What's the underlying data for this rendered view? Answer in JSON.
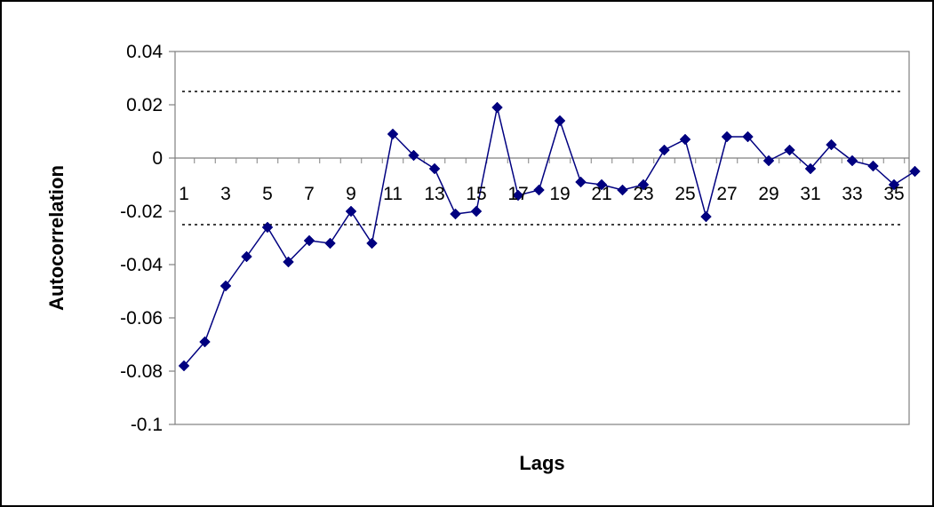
{
  "chart_data": {
    "type": "line",
    "title": "",
    "xlabel": "Lags",
    "ylabel": "Autocorrelation",
    "ylim": [
      -0.1,
      0.04
    ],
    "yticks": [
      0.04,
      0.02,
      0,
      -0.02,
      -0.04,
      -0.06,
      -0.08,
      -0.1
    ],
    "ytick_labels": [
      "0.04",
      "0.02",
      "0",
      "-0.02",
      "-0.04",
      "-0.06",
      "-0.08",
      "-0.1"
    ],
    "xtick_labels": [
      "1",
      "3",
      "5",
      "7",
      "9",
      "11",
      "13",
      "15",
      "17",
      "19",
      "21",
      "23",
      "25",
      "27",
      "29",
      "31",
      "33",
      "35"
    ],
    "xtick_lags": [
      1,
      3,
      5,
      7,
      9,
      11,
      13,
      15,
      17,
      19,
      21,
      23,
      25,
      27,
      29,
      31,
      33,
      35
    ],
    "grid": false,
    "legend": "none",
    "confidence_band": [
      -0.025,
      0.025
    ],
    "series": [
      {
        "color": "#000080",
        "marker": "diamond",
        "x": [
          1,
          2,
          3,
          4,
          5,
          6,
          7,
          8,
          9,
          10,
          11,
          12,
          13,
          14,
          15,
          16,
          17,
          18,
          19,
          20,
          21,
          22,
          23,
          24,
          25,
          26,
          27,
          28,
          29,
          30,
          31,
          32,
          33,
          34,
          35,
          36
        ],
        "values": [
          -0.078,
          -0.069,
          -0.048,
          -0.037,
          -0.026,
          -0.039,
          -0.031,
          -0.032,
          -0.02,
          -0.032,
          0.009,
          0.001,
          -0.004,
          -0.021,
          -0.02,
          0.019,
          -0.014,
          -0.012,
          0.014,
          -0.009,
          -0.01,
          -0.012,
          -0.01,
          0.003,
          0.007,
          -0.022,
          0.008,
          0.008,
          -0.001,
          0.003,
          -0.004,
          0.005,
          -0.001,
          -0.003,
          -0.01,
          -0.005
        ]
      }
    ],
    "colors": {
      "series": "#000080",
      "axis": "#808080",
      "band": "#000000",
      "frame": "#000000"
    }
  }
}
